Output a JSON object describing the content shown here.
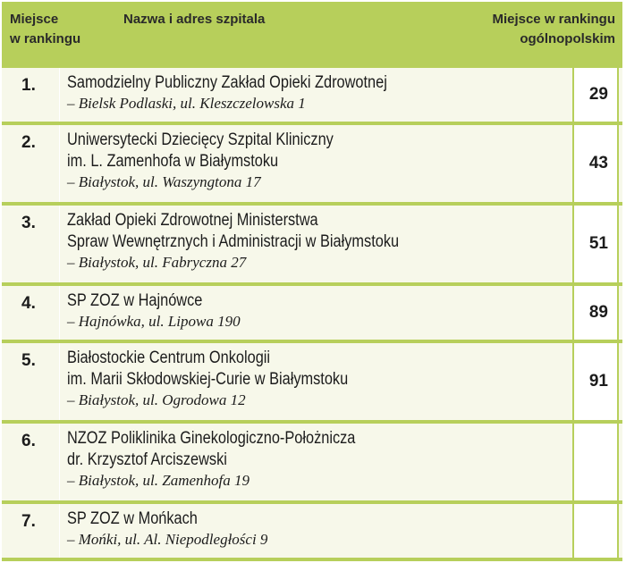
{
  "header": {
    "rank_line1": "Miejsce",
    "rank_line2": "w rankingu",
    "name": "Nazwa i adres szpitala",
    "national_line1": "Miejsce w rankingu",
    "national_line2": "ogólnopolskim"
  },
  "rows": [
    {
      "rank": "1.",
      "name": [
        "Samodzielny Publiczny Zakład Opieki Zdrowotnej"
      ],
      "address": "– Bielsk Podlaski, ul. Kleszczelowska 1",
      "national": "29"
    },
    {
      "rank": "2.",
      "name": [
        "Uniwersytecki Dziecięcy Szpital Kliniczny",
        "im. L. Zamenhofa w Białymstoku"
      ],
      "address": "– Białystok, ul. Waszyngtona 17",
      "national": "43"
    },
    {
      "rank": "3.",
      "name": [
        "Zakład Opieki Zdrowotnej Ministerstwa",
        "Spraw Wewnętrznych i Administracji w Białymstoku"
      ],
      "address": "– Białystok, ul. Fabryczna 27",
      "national": "51"
    },
    {
      "rank": "4.",
      "name": [
        "SP ZOZ w Hajnówce"
      ],
      "address": "– Hajnówka, ul. Lipowa 190",
      "national": "89"
    },
    {
      "rank": "5.",
      "name": [
        "Białostockie Centrum Onkologii",
        "im. Marii Skłodowskiej-Curie w Białymstoku"
      ],
      "address": "– Białystok, ul. Ogrodowa 12",
      "national": "91"
    },
    {
      "rank": "6.",
      "name": [
        "NZOZ Poliklinika Ginekologiczno-Położnicza",
        "dr. Krzysztof Arciszewski"
      ],
      "address": "– Białystok, ul. Zamenhofa 19",
      "national": ""
    },
    {
      "rank": "7.",
      "name": [
        "SP ZOZ w Mońkach"
      ],
      "address": "– Mońki, ul. Al. Niepodległości 9",
      "national": ""
    }
  ],
  "colors": {
    "header_bg": "#b7cf5b",
    "row_bg": "#f7f8ea",
    "cell_bg": "#ffffff"
  }
}
